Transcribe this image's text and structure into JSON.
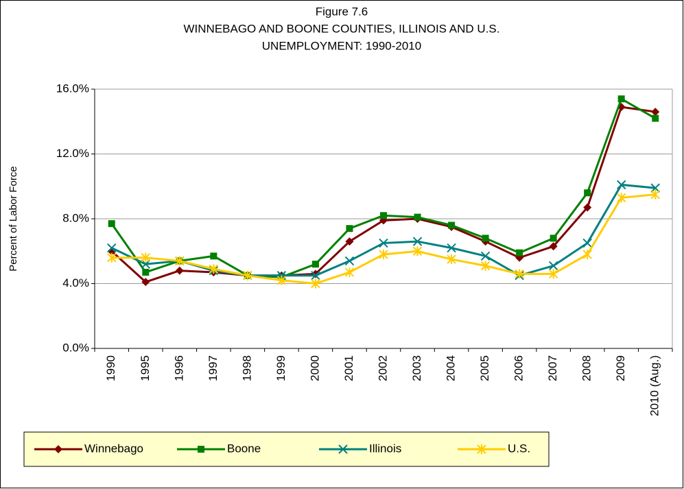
{
  "chart_data": {
    "type": "line",
    "title": [
      "Figure 7.6",
      "WINNEBAGO AND BOONE COUNTIES, ILLINOIS AND U.S.",
      "UNEMPLOYMENT:  1990-2010"
    ],
    "y_label": "Percent of Labor Force",
    "categories": [
      "1990",
      "1995",
      "1996",
      "1997",
      "1998",
      "1999",
      "2000",
      "2001",
      "2002",
      "2003",
      "2004",
      "2005",
      "2006",
      "2007",
      "2008",
      "2009",
      "2010 (Aug.)"
    ],
    "series": [
      {
        "name": "Winnebago",
        "color": "#800000",
        "marker": "diamond",
        "values": [
          6.0,
          4.1,
          4.8,
          4.7,
          4.5,
          4.5,
          4.6,
          6.6,
          7.9,
          8.0,
          7.5,
          6.6,
          5.6,
          6.3,
          8.7,
          14.9,
          14.6
        ]
      },
      {
        "name": "Boone",
        "color": "#008000",
        "marker": "square",
        "values": [
          7.7,
          4.7,
          5.4,
          5.7,
          4.5,
          4.4,
          5.2,
          7.4,
          8.2,
          8.1,
          7.6,
          6.8,
          5.9,
          6.8,
          9.6,
          15.4,
          14.2
        ]
      },
      {
        "name": "Illinois",
        "color": "#008080",
        "marker": "x",
        "values": [
          6.2,
          5.2,
          5.4,
          4.8,
          4.5,
          4.5,
          4.5,
          5.4,
          6.5,
          6.6,
          6.2,
          5.7,
          4.5,
          5.1,
          6.5,
          10.1,
          9.9
        ]
      },
      {
        "name": "U.S.",
        "color": "#ffcc00",
        "marker": "star",
        "values": [
          5.6,
          5.6,
          5.4,
          4.9,
          4.5,
          4.2,
          4.0,
          4.7,
          5.8,
          6.0,
          5.5,
          5.1,
          4.6,
          4.6,
          5.8,
          9.3,
          9.5
        ]
      }
    ],
    "ylim": [
      0,
      16
    ],
    "yticks": [
      {
        "value": 0,
        "label": "0.0%"
      },
      {
        "value": 4,
        "label": "4.0%"
      },
      {
        "value": 8,
        "label": "8.0%"
      },
      {
        "value": 12,
        "label": "12.0%"
      },
      {
        "value": 16,
        "label": "16.0%"
      }
    ],
    "grid": true,
    "legend": "bottom"
  }
}
